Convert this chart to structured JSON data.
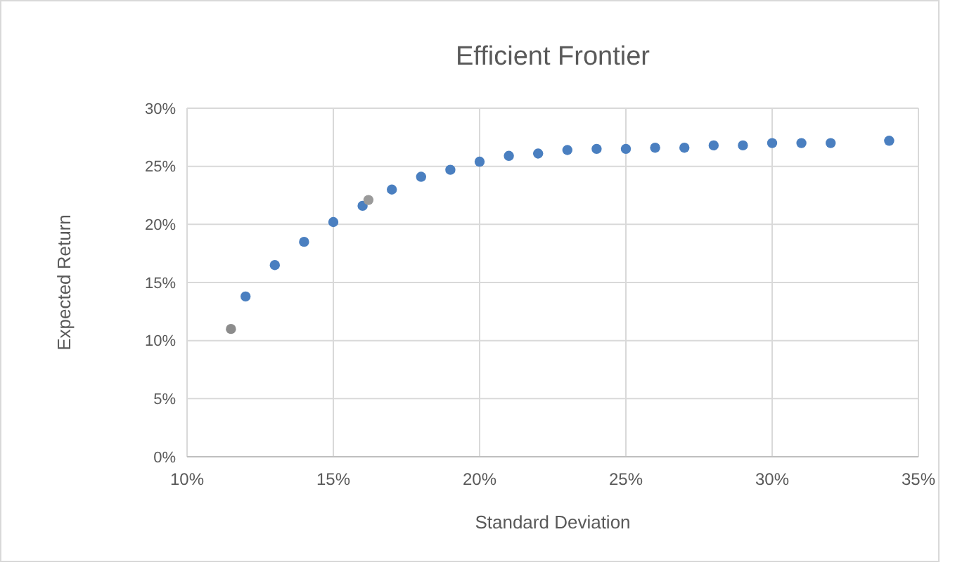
{
  "chart_data": {
    "type": "scatter",
    "title": "Efficient Frontier",
    "xlabel": "Standard Deviation",
    "ylabel": "Expected Return",
    "x": [
      11.5,
      12,
      13,
      14,
      15,
      16,
      16.2,
      17,
      18,
      19,
      20,
      21,
      22,
      23,
      24,
      25,
      26,
      27,
      28,
      29,
      30,
      31,
      32,
      34
    ],
    "values": [
      11.0,
      13.8,
      16.5,
      18.5,
      20.2,
      21.6,
      22.1,
      23.0,
      24.1,
      24.7,
      25.4,
      25.9,
      26.1,
      26.4,
      26.5,
      26.5,
      26.6,
      26.6,
      26.8,
      26.8,
      27.0,
      27.0,
      27.0,
      27.2
    ],
    "colors": [
      "#8c8c8c",
      "#4a7fc0",
      "#4a7fc0",
      "#4a7fc0",
      "#4a7fc0",
      "#4a7fc0",
      "#9a9a9a",
      "#4a7fc0",
      "#4a7fc0",
      "#4a7fc0",
      "#4a7fc0",
      "#4a7fc0",
      "#4a7fc0",
      "#4a7fc0",
      "#4a7fc0",
      "#4a7fc0",
      "#4a7fc0",
      "#4a7fc0",
      "#4a7fc0",
      "#4a7fc0",
      "#4a7fc0",
      "#4a7fc0",
      "#4a7fc0",
      "#4a7fc0"
    ],
    "xlim": [
      10,
      35
    ],
    "xticks": [
      {
        "value": 10,
        "label": "10%"
      },
      {
        "value": 15,
        "label": "15%"
      },
      {
        "value": 20,
        "label": "20%"
      },
      {
        "value": 25,
        "label": "25%"
      },
      {
        "value": 30,
        "label": "30%"
      },
      {
        "value": 35,
        "label": "35%"
      }
    ],
    "ylim": [
      0,
      30
    ],
    "yticks": [
      {
        "value": 0,
        "label": "0%"
      },
      {
        "value": 5,
        "label": "5%"
      },
      {
        "value": 10,
        "label": "10%"
      },
      {
        "value": 15,
        "label": "15%"
      },
      {
        "value": 20,
        "label": "20%"
      },
      {
        "value": 25,
        "label": "25%"
      },
      {
        "value": 30,
        "label": "30%"
      }
    ],
    "grid": true,
    "marker": "circle"
  }
}
